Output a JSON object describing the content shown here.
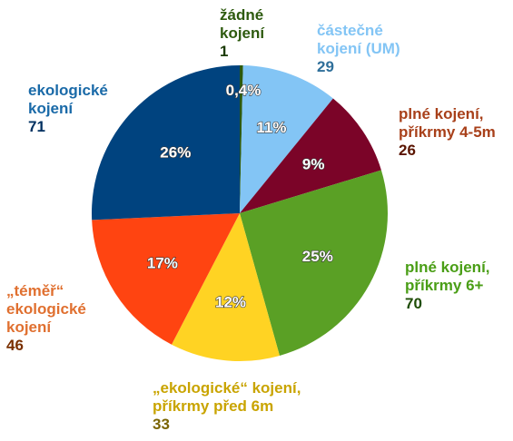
{
  "chart_data": {
    "type": "pie",
    "slices": [
      {
        "label": [
          "žádné",
          "kojení"
        ],
        "value": 1,
        "pct": "0,4%",
        "color": "#2d5a0e",
        "text_color": "#2d5a0e",
        "value_color": "#1a3a06"
      },
      {
        "label": [
          "částečné",
          "kojení (UM)"
        ],
        "value": 29,
        "pct": "11%",
        "color": "#83c5f5",
        "text_color": "#83c5f5",
        "value_color": "#2f6f9a"
      },
      {
        "label": [
          "plné kojení,",
          "příkrmy 4-5m"
        ],
        "value": 26,
        "pct": "9%",
        "color": "#7b0428",
        "text_color": "#a8401a",
        "value_color": "#5a1400"
      },
      {
        "label": [
          "plné kojení,",
          "příkrmy 6+"
        ],
        "value": 70,
        "pct": "25%",
        "color": "#5aa025",
        "text_color": "#4a9e16",
        "value_color": "#1f4d05"
      },
      {
        "label": [
          "„ekologické“ kojení,",
          "příkrmy před 6m"
        ],
        "value": 33,
        "pct": "12%",
        "color": "#ffd323",
        "text_color": "#c9a400",
        "value_color": "#7a6400"
      },
      {
        "label": [
          "„téměř“",
          "ekologické",
          "kojení"
        ],
        "value": 46,
        "pct": "17%",
        "color": "#ff4411",
        "text_color": "#e07030",
        "value_color": "#7a3000"
      },
      {
        "label": [
          "ekologické",
          "kojení"
        ],
        "value": 71,
        "pct": "26%",
        "color": "#00437f",
        "text_color": "#1a6aa8",
        "value_color": "#003060"
      }
    ]
  }
}
